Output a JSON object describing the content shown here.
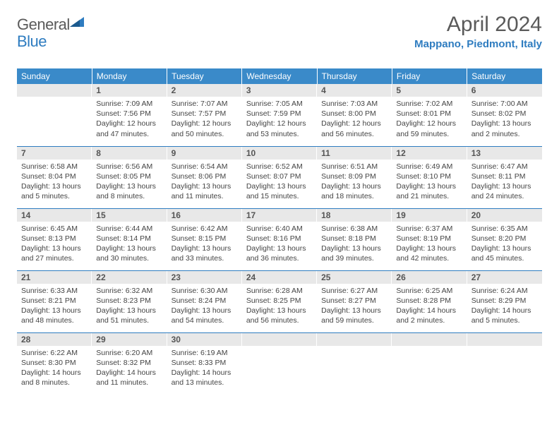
{
  "logo": {
    "general": "General",
    "blue": "Blue"
  },
  "title": "April 2024",
  "location": "Mappano, Piedmont, Italy",
  "colors": {
    "header_bg": "#3a8ac9",
    "accent": "#2e7cc0",
    "daynum_bg": "#e8e8e8",
    "text": "#444444",
    "title_text": "#5a5a5a"
  },
  "weekdays": [
    "Sunday",
    "Monday",
    "Tuesday",
    "Wednesday",
    "Thursday",
    "Friday",
    "Saturday"
  ],
  "weeks": [
    [
      null,
      {
        "n": "1",
        "sr": "Sunrise: 7:09 AM",
        "ss": "Sunset: 7:56 PM",
        "dl": "Daylight: 12 hours and 47 minutes."
      },
      {
        "n": "2",
        "sr": "Sunrise: 7:07 AM",
        "ss": "Sunset: 7:57 PM",
        "dl": "Daylight: 12 hours and 50 minutes."
      },
      {
        "n": "3",
        "sr": "Sunrise: 7:05 AM",
        "ss": "Sunset: 7:59 PM",
        "dl": "Daylight: 12 hours and 53 minutes."
      },
      {
        "n": "4",
        "sr": "Sunrise: 7:03 AM",
        "ss": "Sunset: 8:00 PM",
        "dl": "Daylight: 12 hours and 56 minutes."
      },
      {
        "n": "5",
        "sr": "Sunrise: 7:02 AM",
        "ss": "Sunset: 8:01 PM",
        "dl": "Daylight: 12 hours and 59 minutes."
      },
      {
        "n": "6",
        "sr": "Sunrise: 7:00 AM",
        "ss": "Sunset: 8:02 PM",
        "dl": "Daylight: 13 hours and 2 minutes."
      }
    ],
    [
      {
        "n": "7",
        "sr": "Sunrise: 6:58 AM",
        "ss": "Sunset: 8:04 PM",
        "dl": "Daylight: 13 hours and 5 minutes."
      },
      {
        "n": "8",
        "sr": "Sunrise: 6:56 AM",
        "ss": "Sunset: 8:05 PM",
        "dl": "Daylight: 13 hours and 8 minutes."
      },
      {
        "n": "9",
        "sr": "Sunrise: 6:54 AM",
        "ss": "Sunset: 8:06 PM",
        "dl": "Daylight: 13 hours and 11 minutes."
      },
      {
        "n": "10",
        "sr": "Sunrise: 6:52 AM",
        "ss": "Sunset: 8:07 PM",
        "dl": "Daylight: 13 hours and 15 minutes."
      },
      {
        "n": "11",
        "sr": "Sunrise: 6:51 AM",
        "ss": "Sunset: 8:09 PM",
        "dl": "Daylight: 13 hours and 18 minutes."
      },
      {
        "n": "12",
        "sr": "Sunrise: 6:49 AM",
        "ss": "Sunset: 8:10 PM",
        "dl": "Daylight: 13 hours and 21 minutes."
      },
      {
        "n": "13",
        "sr": "Sunrise: 6:47 AM",
        "ss": "Sunset: 8:11 PM",
        "dl": "Daylight: 13 hours and 24 minutes."
      }
    ],
    [
      {
        "n": "14",
        "sr": "Sunrise: 6:45 AM",
        "ss": "Sunset: 8:13 PM",
        "dl": "Daylight: 13 hours and 27 minutes."
      },
      {
        "n": "15",
        "sr": "Sunrise: 6:44 AM",
        "ss": "Sunset: 8:14 PM",
        "dl": "Daylight: 13 hours and 30 minutes."
      },
      {
        "n": "16",
        "sr": "Sunrise: 6:42 AM",
        "ss": "Sunset: 8:15 PM",
        "dl": "Daylight: 13 hours and 33 minutes."
      },
      {
        "n": "17",
        "sr": "Sunrise: 6:40 AM",
        "ss": "Sunset: 8:16 PM",
        "dl": "Daylight: 13 hours and 36 minutes."
      },
      {
        "n": "18",
        "sr": "Sunrise: 6:38 AM",
        "ss": "Sunset: 8:18 PM",
        "dl": "Daylight: 13 hours and 39 minutes."
      },
      {
        "n": "19",
        "sr": "Sunrise: 6:37 AM",
        "ss": "Sunset: 8:19 PM",
        "dl": "Daylight: 13 hours and 42 minutes."
      },
      {
        "n": "20",
        "sr": "Sunrise: 6:35 AM",
        "ss": "Sunset: 8:20 PM",
        "dl": "Daylight: 13 hours and 45 minutes."
      }
    ],
    [
      {
        "n": "21",
        "sr": "Sunrise: 6:33 AM",
        "ss": "Sunset: 8:21 PM",
        "dl": "Daylight: 13 hours and 48 minutes."
      },
      {
        "n": "22",
        "sr": "Sunrise: 6:32 AM",
        "ss": "Sunset: 8:23 PM",
        "dl": "Daylight: 13 hours and 51 minutes."
      },
      {
        "n": "23",
        "sr": "Sunrise: 6:30 AM",
        "ss": "Sunset: 8:24 PM",
        "dl": "Daylight: 13 hours and 54 minutes."
      },
      {
        "n": "24",
        "sr": "Sunrise: 6:28 AM",
        "ss": "Sunset: 8:25 PM",
        "dl": "Daylight: 13 hours and 56 minutes."
      },
      {
        "n": "25",
        "sr": "Sunrise: 6:27 AM",
        "ss": "Sunset: 8:27 PM",
        "dl": "Daylight: 13 hours and 59 minutes."
      },
      {
        "n": "26",
        "sr": "Sunrise: 6:25 AM",
        "ss": "Sunset: 8:28 PM",
        "dl": "Daylight: 14 hours and 2 minutes."
      },
      {
        "n": "27",
        "sr": "Sunrise: 6:24 AM",
        "ss": "Sunset: 8:29 PM",
        "dl": "Daylight: 14 hours and 5 minutes."
      }
    ],
    [
      {
        "n": "28",
        "sr": "Sunrise: 6:22 AM",
        "ss": "Sunset: 8:30 PM",
        "dl": "Daylight: 14 hours and 8 minutes."
      },
      {
        "n": "29",
        "sr": "Sunrise: 6:20 AM",
        "ss": "Sunset: 8:32 PM",
        "dl": "Daylight: 14 hours and 11 minutes."
      },
      {
        "n": "30",
        "sr": "Sunrise: 6:19 AM",
        "ss": "Sunset: 8:33 PM",
        "dl": "Daylight: 14 hours and 13 minutes."
      },
      null,
      null,
      null,
      null
    ]
  ]
}
